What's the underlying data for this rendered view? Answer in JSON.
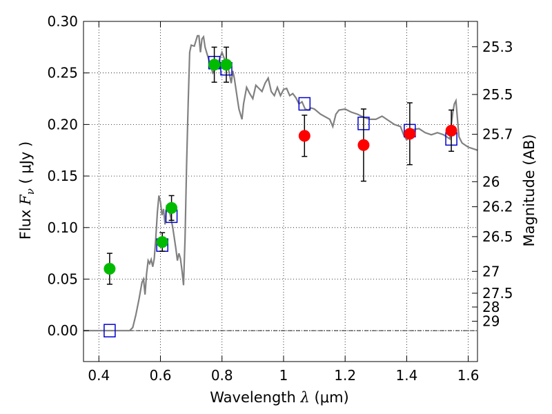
{
  "chart_data": {
    "type": "scatter",
    "xlabel": {
      "text": "Wavelength",
      "symbol": "λ",
      "unit": "(μm)"
    },
    "ylabel": {
      "text": "Flux",
      "symbol": "F",
      "subscript": "ν",
      "unit": "( μJy )"
    },
    "y2label": "Magnitude (AB)",
    "xlim": [
      0.35,
      1.63
    ],
    "ylim": [
      -0.03,
      0.3
    ],
    "grid": true,
    "x_ticks": [
      {
        "value": 0.4,
        "label": "0.4"
      },
      {
        "value": 0.6,
        "label": "0.6"
      },
      {
        "value": 0.8,
        "label": "0.8"
      },
      {
        "value": 1.0,
        "label": "1"
      },
      {
        "value": 1.2,
        "label": "1.2"
      },
      {
        "value": 1.4,
        "label": "1.4"
      },
      {
        "value": 1.6,
        "label": "1.6"
      }
    ],
    "y_ticks": [
      {
        "value": 0.0,
        "label": "0.00"
      },
      {
        "value": 0.05,
        "label": "0.05"
      },
      {
        "value": 0.1,
        "label": "0.10"
      },
      {
        "value": 0.15,
        "label": "0.15"
      },
      {
        "value": 0.2,
        "label": "0.20"
      },
      {
        "value": 0.25,
        "label": "0.25"
      },
      {
        "value": 0.3,
        "label": "0.30"
      }
    ],
    "y2_ticks": [
      {
        "flux": 0.2754,
        "label": "25.3"
      },
      {
        "flux": 0.2291,
        "label": "25.5"
      },
      {
        "flux": 0.1905,
        "label": "25.7"
      },
      {
        "flux": 0.1445,
        "label": "26"
      },
      {
        "flux": 0.1202,
        "label": "26.2"
      },
      {
        "flux": 0.0912,
        "label": "26.5"
      },
      {
        "flux": 0.0575,
        "label": "27"
      },
      {
        "flux": 0.0363,
        "label": "27.5"
      },
      {
        "flux": 0.0229,
        "label": "28"
      },
      {
        "flux": 0.0091,
        "label": "29"
      }
    ],
    "series": [
      {
        "kind": "model_sed",
        "color": "#808080",
        "points": [
          [
            0.35,
            0.0
          ],
          [
            0.5,
            0.0
          ],
          [
            0.51,
            0.003
          ],
          [
            0.52,
            0.015
          ],
          [
            0.53,
            0.03
          ],
          [
            0.54,
            0.047
          ],
          [
            0.545,
            0.05
          ],
          [
            0.55,
            0.035
          ],
          [
            0.555,
            0.055
          ],
          [
            0.56,
            0.068
          ],
          [
            0.565,
            0.065
          ],
          [
            0.57,
            0.069
          ],
          [
            0.575,
            0.062
          ],
          [
            0.58,
            0.07
          ],
          [
            0.585,
            0.09
          ],
          [
            0.59,
            0.115
          ],
          [
            0.595,
            0.131
          ],
          [
            0.6,
            0.125
          ],
          [
            0.605,
            0.112
          ],
          [
            0.61,
            0.118
          ],
          [
            0.615,
            0.103
          ],
          [
            0.62,
            0.12
          ],
          [
            0.63,
            0.115
          ],
          [
            0.64,
            0.1
          ],
          [
            0.65,
            0.08
          ],
          [
            0.655,
            0.068
          ],
          [
            0.66,
            0.075
          ],
          [
            0.665,
            0.07
          ],
          [
            0.67,
            0.058
          ],
          [
            0.675,
            0.044
          ],
          [
            0.68,
            0.09
          ],
          [
            0.685,
            0.16
          ],
          [
            0.69,
            0.22
          ],
          [
            0.695,
            0.27
          ],
          [
            0.7,
            0.277
          ],
          [
            0.71,
            0.276
          ],
          [
            0.72,
            0.286
          ],
          [
            0.725,
            0.286
          ],
          [
            0.73,
            0.27
          ],
          [
            0.735,
            0.283
          ],
          [
            0.74,
            0.285
          ],
          [
            0.745,
            0.275
          ],
          [
            0.75,
            0.27
          ],
          [
            0.76,
            0.26
          ],
          [
            0.77,
            0.25
          ],
          [
            0.78,
            0.255
          ],
          [
            0.79,
            0.262
          ],
          [
            0.8,
            0.27
          ],
          [
            0.81,
            0.262
          ],
          [
            0.82,
            0.255
          ],
          [
            0.83,
            0.24
          ],
          [
            0.835,
            0.252
          ],
          [
            0.84,
            0.245
          ],
          [
            0.85,
            0.225
          ],
          [
            0.855,
            0.215
          ],
          [
            0.86,
            0.21
          ],
          [
            0.865,
            0.205
          ],
          [
            0.87,
            0.22
          ],
          [
            0.88,
            0.236
          ],
          [
            0.89,
            0.23
          ],
          [
            0.9,
            0.225
          ],
          [
            0.91,
            0.238
          ],
          [
            0.92,
            0.235
          ],
          [
            0.93,
            0.232
          ],
          [
            0.94,
            0.24
          ],
          [
            0.95,
            0.245
          ],
          [
            0.96,
            0.232
          ],
          [
            0.97,
            0.228
          ],
          [
            0.98,
            0.236
          ],
          [
            0.99,
            0.228
          ],
          [
            1.0,
            0.234
          ],
          [
            1.01,
            0.235
          ],
          [
            1.02,
            0.228
          ],
          [
            1.03,
            0.23
          ],
          [
            1.04,
            0.226
          ],
          [
            1.05,
            0.22
          ],
          [
            1.06,
            0.222
          ],
          [
            1.07,
            0.215
          ],
          [
            1.08,
            0.214
          ],
          [
            1.09,
            0.216
          ],
          [
            1.1,
            0.215
          ],
          [
            1.12,
            0.21
          ],
          [
            1.15,
            0.205
          ],
          [
            1.16,
            0.198
          ],
          [
            1.17,
            0.21
          ],
          [
            1.18,
            0.214
          ],
          [
            1.2,
            0.215
          ],
          [
            1.22,
            0.212
          ],
          [
            1.24,
            0.21
          ],
          [
            1.26,
            0.207
          ],
          [
            1.28,
            0.205
          ],
          [
            1.3,
            0.205
          ],
          [
            1.32,
            0.208
          ],
          [
            1.34,
            0.204
          ],
          [
            1.36,
            0.2
          ],
          [
            1.38,
            0.198
          ],
          [
            1.39,
            0.19
          ],
          [
            1.4,
            0.185
          ],
          [
            1.41,
            0.188
          ],
          [
            1.42,
            0.195
          ],
          [
            1.44,
            0.196
          ],
          [
            1.46,
            0.192
          ],
          [
            1.48,
            0.19
          ],
          [
            1.5,
            0.192
          ],
          [
            1.52,
            0.19
          ],
          [
            1.54,
            0.186
          ],
          [
            1.545,
            0.2
          ],
          [
            1.55,
            0.212
          ],
          [
            1.555,
            0.22
          ],
          [
            1.56,
            0.223
          ],
          [
            1.565,
            0.205
          ],
          [
            1.57,
            0.188
          ],
          [
            1.58,
            0.182
          ],
          [
            1.6,
            0.178
          ],
          [
            1.62,
            0.176
          ],
          [
            1.63,
            0.175
          ]
        ]
      },
      {
        "kind": "model_photometry",
        "marker": "open_square",
        "color": "#0000cc",
        "points": [
          [
            0.435,
            0.0
          ],
          [
            0.606,
            0.083
          ],
          [
            0.636,
            0.111
          ],
          [
            0.775,
            0.26
          ],
          [
            0.814,
            0.254
          ],
          [
            1.068,
            0.22
          ],
          [
            1.26,
            0.201
          ],
          [
            1.41,
            0.194
          ],
          [
            1.545,
            0.186
          ]
        ]
      },
      {
        "kind": "observed_optical",
        "marker": "filled_circle",
        "color": "#00bb00",
        "points": [
          {
            "x": 0.435,
            "y": 0.06,
            "err": 0.015
          },
          {
            "x": 0.606,
            "y": 0.086,
            "err": 0.009
          },
          {
            "x": 0.636,
            "y": 0.119,
            "err": 0.012
          },
          {
            "x": 0.775,
            "y": 0.258,
            "err": 0.017
          },
          {
            "x": 0.814,
            "y": 0.258,
            "err": 0.017
          }
        ]
      },
      {
        "kind": "observed_infrared",
        "marker": "filled_circle",
        "color": "#ff0000",
        "points": [
          {
            "x": 1.068,
            "y": 0.189,
            "err": 0.02
          },
          {
            "x": 1.26,
            "y": 0.18,
            "err": 0.035
          },
          {
            "x": 1.41,
            "y": 0.191,
            "err": 0.03
          },
          {
            "x": 1.545,
            "y": 0.194,
            "err": 0.02
          }
        ]
      }
    ]
  }
}
